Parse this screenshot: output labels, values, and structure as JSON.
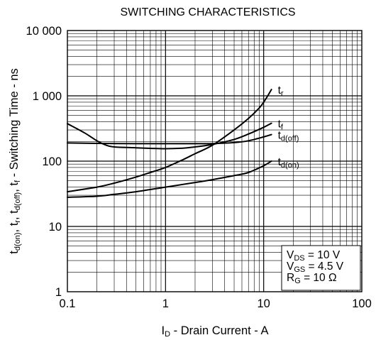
{
  "chart_data": {
    "type": "line",
    "title": "SWITCHING CHARACTERISTICS",
    "xlabel": "ID - Drain Current - A",
    "xlabel_parts": {
      "main": "I",
      "sub": "D",
      "rest": " -  Drain Current -  A"
    },
    "ylabel": "td(on), tr, td(off), tf - Switching Time - ns",
    "ylabel_parts": [
      {
        "main": "t",
        "sub": "d(on)",
        "after": ", "
      },
      {
        "main": "t",
        "sub": "r",
        "after": ", "
      },
      {
        "main": "t",
        "sub": "d(off)",
        "after": ", "
      },
      {
        "main": "t",
        "sub": "f",
        "after": " -  Switching Time - ns"
      }
    ],
    "x_scale": "log",
    "y_scale": "log",
    "xlim": [
      0.1,
      100
    ],
    "ylim": [
      1,
      10000
    ],
    "x_ticks": [
      0.1,
      1,
      10,
      100
    ],
    "x_tick_labels": [
      "0.1",
      "1",
      "10",
      "100"
    ],
    "y_ticks": [
      1,
      10,
      100,
      1000,
      10000
    ],
    "y_tick_labels": [
      "1",
      "10",
      "100",
      "1 000",
      "10 000"
    ],
    "grid": true,
    "series": [
      {
        "name": "tr",
        "label_main": "t",
        "label_sub": "r",
        "x": [
          0.1,
          0.2,
          0.3,
          0.5,
          0.7,
          1,
          1.5,
          2,
          3,
          5,
          7,
          9,
          10,
          11,
          12
        ],
        "y": [
          34,
          40,
          46,
          57,
          67,
          80,
          105,
          130,
          175,
          300,
          450,
          650,
          800,
          1000,
          1250
        ]
      },
      {
        "name": "tf",
        "label_main": "t",
        "label_sub": "f",
        "x": [
          0.1,
          0.15,
          0.2,
          0.25,
          0.3,
          0.5,
          0.7,
          1,
          1.5,
          2,
          3,
          5,
          7,
          10,
          12
        ],
        "y": [
          375,
          270,
          205,
          175,
          165,
          160,
          157,
          155,
          158,
          165,
          180,
          215,
          260,
          330,
          380
        ]
      },
      {
        "name": "td(off)",
        "label_main": "t",
        "label_sub": "d(off)",
        "x": [
          0.1,
          0.2,
          0.5,
          1,
          2,
          3,
          5,
          7,
          10,
          12
        ],
        "y": [
          190,
          187,
          185,
          185,
          185,
          186,
          192,
          205,
          235,
          255
        ]
      },
      {
        "name": "td(on)",
        "label_main": "t",
        "label_sub": "d(on)",
        "x": [
          0.1,
          0.2,
          0.3,
          0.5,
          1,
          2,
          3,
          5,
          7,
          10,
          12
        ],
        "y": [
          28,
          29,
          31,
          34,
          40,
          47,
          52,
          60,
          67,
          85,
          100
        ]
      }
    ],
    "conditions": [
      {
        "main": "V",
        "sub": "DS",
        "rest": " = 10 V"
      },
      {
        "main": "V",
        "sub": "GS",
        "rest": " = 4.5 V"
      },
      {
        "main": "R",
        "sub": "G",
        "rest": " = 10 Ω"
      }
    ]
  }
}
